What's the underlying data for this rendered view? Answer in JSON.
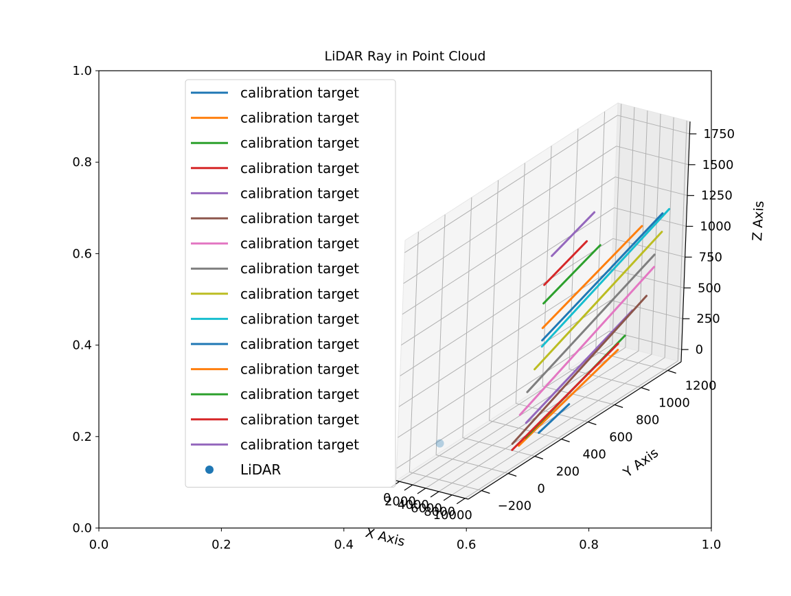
{
  "chart_data": {
    "type": "line",
    "title": "LiDAR Ray in Point Cloud",
    "outer_axes": {
      "xlim": [
        0.0,
        1.0
      ],
      "ylim": [
        0.0,
        1.0
      ],
      "x_ticks": [
        "0.0",
        "0.2",
        "0.4",
        "0.6",
        "0.8",
        "1.0"
      ],
      "y_ticks": [
        "0.0",
        "0.2",
        "0.4",
        "0.6",
        "0.8",
        "1.0"
      ]
    },
    "axes3d": {
      "xlabel": "X Axis",
      "ylabel": "Y Axis",
      "zlabel": "Z Axis",
      "xlim": [
        -500,
        10500
      ],
      "ylim": [
        -300,
        1300
      ],
      "zlim": [
        -100,
        1850
      ],
      "x_ticks": [
        0,
        2000,
        4000,
        6000,
        8000,
        10000
      ],
      "x_tick_labels": [
        "0",
        "2000",
        "4000",
        "6000",
        "8000",
        "10000"
      ],
      "y_ticks": [
        -200,
        0,
        200,
        400,
        600,
        800,
        1000,
        1200
      ],
      "y_tick_labels": [
        "−200",
        "0",
        "200",
        "400",
        "600",
        "800",
        "1000",
        "1200"
      ],
      "z_ticks": [
        0,
        250,
        500,
        750,
        1000,
        1250,
        1500,
        1750
      ],
      "z_tick_labels": [
        "0",
        "250",
        "500",
        "750",
        "1000",
        "1250",
        "1500",
        "1750"
      ],
      "grid": true
    },
    "lidar_point": {
      "name": "LiDAR",
      "x": 0,
      "y": 0,
      "z": 0,
      "color": "#1f77b4"
    },
    "series": [
      {
        "name": "calibration target",
        "color": "#1f77b4",
        "x": [
          9000,
          9500
        ],
        "y": [
          300,
          500
        ],
        "z": [
          0,
          100
        ]
      },
      {
        "name": "calibration target",
        "color": "#ff7f0e",
        "x": [
          9000,
          9700
        ],
        "y": [
          150,
          850
        ],
        "z": [
          0,
          300
        ]
      },
      {
        "name": "calibration target",
        "color": "#2ca02c",
        "x": [
          9000,
          9700
        ],
        "y": [
          200,
          900
        ],
        "z": [
          30,
          380
        ]
      },
      {
        "name": "calibration target",
        "color": "#d62728",
        "x": [
          9000,
          9700
        ],
        "y": [
          100,
          850
        ],
        "z": [
          0,
          350
        ]
      },
      {
        "name": "calibration target",
        "color": "#9467bd",
        "x": [
          9000,
          9700
        ],
        "y": [
          200,
          950
        ],
        "z": [
          150,
          550
        ]
      },
      {
        "name": "calibration target",
        "color": "#8c564b",
        "x": [
          9000,
          9800
        ],
        "y": [
          100,
          1050
        ],
        "z": [
          50,
          600
        ]
      },
      {
        "name": "calibration target",
        "color": "#e377c2",
        "x": [
          9000,
          9800
        ],
        "y": [
          150,
          1100
        ],
        "z": [
          250,
          800
        ]
      },
      {
        "name": "calibration target",
        "color": "#7f7f7f",
        "x": [
          9000,
          9800
        ],
        "y": [
          200,
          1100
        ],
        "z": [
          400,
          900
        ]
      },
      {
        "name": "calibration target",
        "color": "#bcbd22",
        "x": [
          9000,
          9800
        ],
        "y": [
          250,
          1150
        ],
        "z": [
          550,
          1050
        ]
      },
      {
        "name": "calibration target",
        "color": "#17becf",
        "x": [
          9000,
          9800
        ],
        "y": [
          300,
          1200
        ],
        "z": [
          700,
          1200
        ]
      },
      {
        "name": "calibration target",
        "color": "#1f77b4",
        "x": [
          9000,
          9800
        ],
        "y": [
          300,
          1150
        ],
        "z": [
          750,
          1200
        ]
      },
      {
        "name": "calibration target",
        "color": "#ff7f0e",
        "x": [
          9000,
          9700
        ],
        "y": [
          300,
          1000
        ],
        "z": [
          850,
          1200
        ]
      },
      {
        "name": "calibration target",
        "color": "#2ca02c",
        "x": [
          9000,
          9400
        ],
        "y": [
          300,
          700
        ],
        "z": [
          1050,
          1250
        ]
      },
      {
        "name": "calibration target",
        "color": "#d62728",
        "x": [
          9000,
          9300
        ],
        "y": [
          300,
          600
        ],
        "z": [
          1200,
          1350
        ]
      },
      {
        "name": "calibration target",
        "color": "#9467bd",
        "x": [
          9000,
          9300
        ],
        "y": [
          350,
          650
        ],
        "z": [
          1400,
          1550
        ]
      }
    ],
    "legend": {
      "placement": "upper-left",
      "entries": [
        {
          "label": "calibration target",
          "color": "#1f77b4",
          "marker": "line"
        },
        {
          "label": "calibration target",
          "color": "#ff7f0e",
          "marker": "line"
        },
        {
          "label": "calibration target",
          "color": "#2ca02c",
          "marker": "line"
        },
        {
          "label": "calibration target",
          "color": "#d62728",
          "marker": "line"
        },
        {
          "label": "calibration target",
          "color": "#9467bd",
          "marker": "line"
        },
        {
          "label": "calibration target",
          "color": "#8c564b",
          "marker": "line"
        },
        {
          "label": "calibration target",
          "color": "#e377c2",
          "marker": "line"
        },
        {
          "label": "calibration target",
          "color": "#7f7f7f",
          "marker": "line"
        },
        {
          "label": "calibration target",
          "color": "#bcbd22",
          "marker": "line"
        },
        {
          "label": "calibration target",
          "color": "#17becf",
          "marker": "line"
        },
        {
          "label": "calibration target",
          "color": "#1f77b4",
          "marker": "line"
        },
        {
          "label": "calibration target",
          "color": "#ff7f0e",
          "marker": "line"
        },
        {
          "label": "calibration target",
          "color": "#2ca02c",
          "marker": "line"
        },
        {
          "label": "calibration target",
          "color": "#d62728",
          "marker": "line"
        },
        {
          "label": "calibration target",
          "color": "#9467bd",
          "marker": "line"
        },
        {
          "label": "LiDAR",
          "color": "#1f77b4",
          "marker": "dot"
        }
      ]
    }
  }
}
